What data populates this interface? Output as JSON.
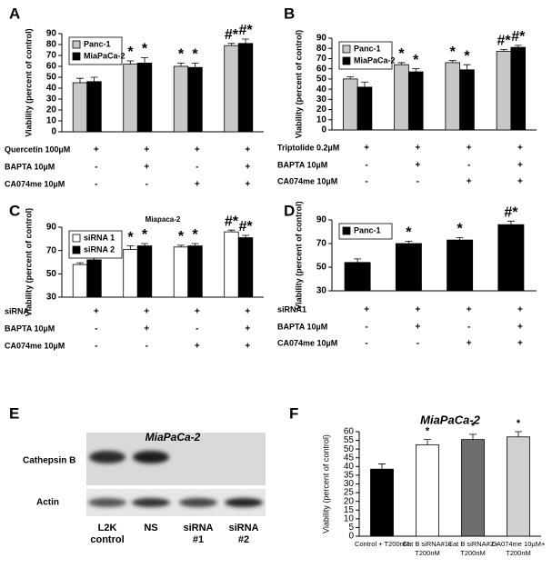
{
  "chart_data": [
    {
      "type": "bar",
      "label": "A",
      "ylabel": "Viability (percent of control)",
      "ylim": [
        0,
        90
      ],
      "yticks": [
        0,
        10,
        20,
        30,
        40,
        50,
        60,
        70,
        80,
        90
      ],
      "legend": "upper left",
      "series": [
        {
          "name": "Panc-1",
          "color": "#c8c8c8",
          "values": [
            45,
            62,
            60,
            79
          ],
          "errors": [
            4,
            3,
            3,
            2
          ],
          "annotations": [
            null,
            "*",
            "*",
            "#*"
          ]
        },
        {
          "name": "MiaPaCa-2",
          "color": "#000000",
          "values": [
            46,
            63,
            59,
            81
          ],
          "errors": [
            4,
            5,
            4,
            4
          ],
          "annotations": [
            null,
            "*",
            "*",
            "#*"
          ]
        }
      ],
      "conditions": [
        {
          "label": "Quercetin 100µM",
          "values": [
            "+",
            "+",
            "+",
            "+"
          ]
        },
        {
          "label": "BAPTA 10µM",
          "values": [
            "-",
            "+",
            "-",
            "+"
          ]
        },
        {
          "label": "CA074me 10µM",
          "values": [
            "-",
            "-",
            "+",
            "+"
          ]
        }
      ]
    },
    {
      "type": "bar",
      "label": "B",
      "ylabel": "Viability (percent of control)",
      "ylim": [
        0,
        90
      ],
      "yticks": [
        0,
        10,
        20,
        30,
        40,
        50,
        60,
        70,
        80,
        90
      ],
      "legend": "upper left",
      "series": [
        {
          "name": "Panc-1",
          "color": "#c8c8c8",
          "values": [
            50,
            64,
            66,
            77
          ],
          "errors": [
            2,
            2,
            2,
            2
          ],
          "annotations": [
            null,
            "*",
            "*",
            "#*"
          ]
        },
        {
          "name": "MiaPaCa-2",
          "color": "#000000",
          "values": [
            42,
            57,
            59,
            81
          ],
          "errors": [
            5,
            3,
            5,
            2
          ],
          "annotations": [
            null,
            "*",
            "*",
            "#*"
          ]
        }
      ],
      "conditions": [
        {
          "label": "Triptolide 0.2µM",
          "values": [
            "+",
            "+",
            "+",
            "+"
          ]
        },
        {
          "label": "BAPTA 10µM",
          "values": [
            "-",
            "+",
            "-",
            "+"
          ]
        },
        {
          "label": "CA074me 10µM",
          "values": [
            "-",
            "-",
            "+",
            "+"
          ]
        }
      ]
    },
    {
      "type": "bar",
      "label": "C",
      "title": "Miapaca-2",
      "ylabel": "Viability (percent of control)",
      "ylim": [
        30,
        90
      ],
      "yticks": [
        30,
        50,
        70,
        90
      ],
      "legend": "upper left",
      "series": [
        {
          "name": "siRNA 1",
          "color": "#ffffff",
          "values": [
            58,
            71,
            73,
            86
          ],
          "errors": [
            1.5,
            3,
            1.5,
            1.5
          ],
          "annotations": [
            null,
            "*",
            "*",
            "#*"
          ]
        },
        {
          "name": "siRNA 2",
          "color": "#000000",
          "values": [
            62,
            74,
            74,
            81
          ],
          "errors": [
            1.5,
            2,
            2,
            2
          ],
          "annotations": [
            null,
            "*",
            "*",
            "#*"
          ]
        }
      ],
      "conditions": [
        {
          "label": "siRNA",
          "values": [
            "+",
            "+",
            "+",
            "+"
          ]
        },
        {
          "label": "BAPTA 10µM",
          "values": [
            "-",
            "+",
            "-",
            "+"
          ]
        },
        {
          "label": "CA074me 10µM",
          "values": [
            "-",
            "-",
            "+",
            "+"
          ]
        }
      ]
    },
    {
      "type": "bar",
      "label": "D",
      "ylabel": "Viability (percent of control)",
      "ylim": [
        30,
        90
      ],
      "yticks": [
        30,
        50,
        70,
        90
      ],
      "legend": "upper left",
      "series": [
        {
          "name": "Panc-1",
          "color": "#000000",
          "values": [
            54,
            70,
            73,
            86
          ],
          "errors": [
            3,
            2,
            2,
            3
          ],
          "annotations": [
            null,
            "*",
            "*",
            "#*"
          ]
        }
      ],
      "conditions": [
        {
          "label": "siRNA1",
          "values": [
            "+",
            "+",
            "+",
            "+"
          ]
        },
        {
          "label": "BAPTA 10µM",
          "values": [
            "-",
            "+",
            "-",
            "+"
          ]
        },
        {
          "label": "CA074me 10µM",
          "values": [
            "-",
            "-",
            "+",
            "+"
          ]
        }
      ]
    },
    {
      "type": "bar",
      "label": "F",
      "title": "MiaPaCa-2",
      "ylabel": "Viability (percent of control)",
      "ylim": [
        0,
        60
      ],
      "yticks": [
        0,
        5,
        10,
        15,
        20,
        25,
        30,
        35,
        40,
        45,
        50,
        55,
        60
      ],
      "categories": [
        [
          "Control + T200nM"
        ],
        [
          "Cat B siRNA#1+",
          "T200nM"
        ],
        [
          "Cat B siRNA#2+",
          "T200nM"
        ],
        [
          "CA074me 10µM+",
          "T200nM"
        ]
      ],
      "values": [
        38.5,
        52.5,
        55.5,
        57
      ],
      "errors": [
        3,
        3,
        3,
        3
      ],
      "colors": [
        "#000000",
        "#ffffff",
        "#6e6e6e",
        "#d0d0d0"
      ],
      "annotations": [
        null,
        "*",
        "*",
        "*"
      ]
    }
  ],
  "blot": {
    "label": "E",
    "title": "MiaPaCa-2",
    "rows": [
      "Cathepsin B",
      "Actin"
    ],
    "lanes": [
      [
        "L2K",
        "control"
      ],
      [
        "NS"
      ],
      [
        "siRNA",
        "#1"
      ],
      [
        "siRNA",
        "#2"
      ]
    ]
  }
}
